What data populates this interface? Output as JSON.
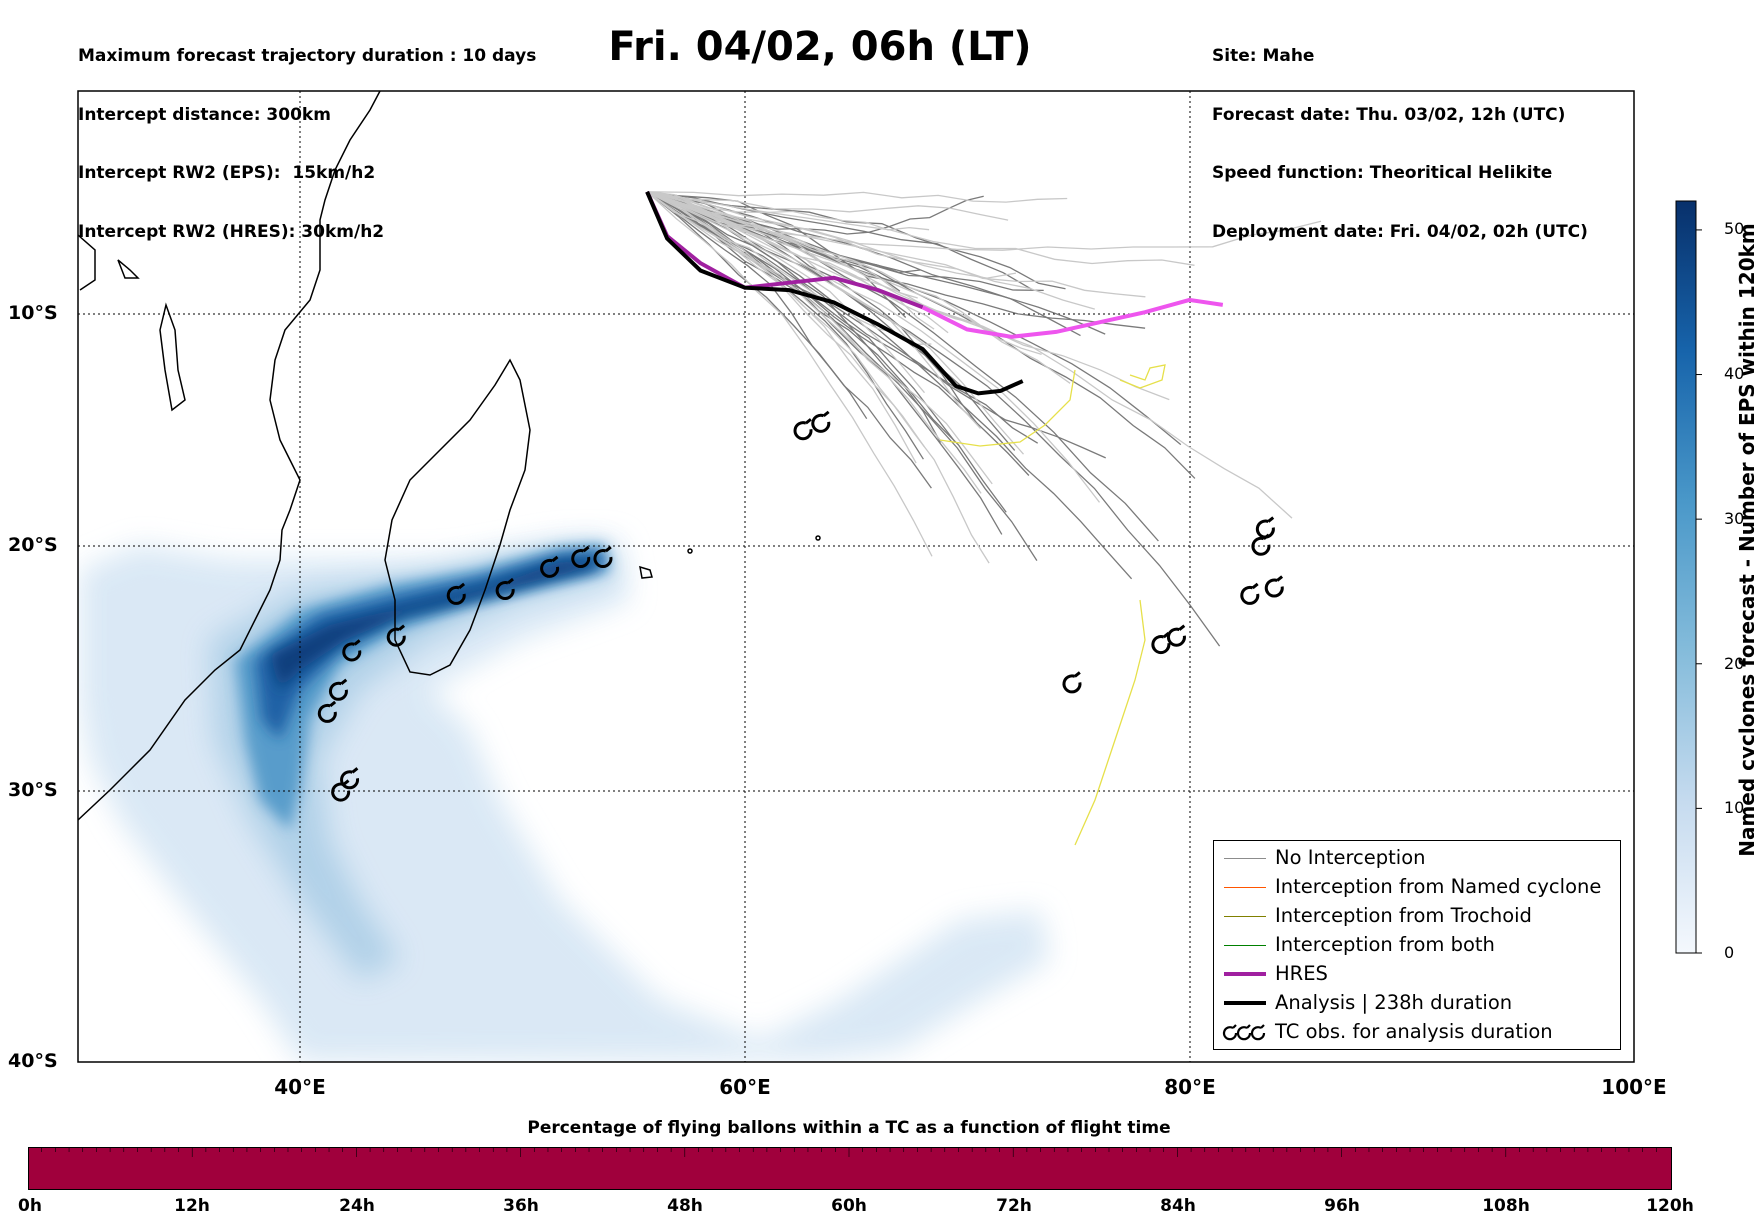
{
  "header": {
    "left_lines": [
      "Maximum forecast trajectory duration : 10 days",
      "Intercept distance: 300km",
      "Intercept RW2 (EPS):  15km/h2",
      "Intercept RW2 (HRES): 30km/h2"
    ],
    "title": "Fri. 04/02, 06h (LT)",
    "right_lines": [
      "Site: Mahe",
      "Forecast date: Thu. 03/02, 12h (UTC)",
      "Speed function: Theoritical Helikite",
      "Deployment date: Fri. 04/02, 02h (UTC)"
    ]
  },
  "map": {
    "lon_labels": [
      "40°E",
      "60°E",
      "80°E",
      "100°E"
    ],
    "lat_labels": [
      "10°S",
      "20°S",
      "30°S",
      "40°S"
    ],
    "extent": {
      "lon": [
        30,
        100
      ],
      "lat": [
        -40,
        -0.5
      ]
    },
    "grid": "dotted",
    "colors": {
      "no_interception": "#8c8c8c",
      "hres": "#a020a0",
      "hres_tail": "#ee55ee",
      "analysis": "#000000",
      "yellow_track": "#e6e04a"
    },
    "analysis_track": [
      [
        55.6,
        -4.6
      ],
      [
        56.5,
        -6.5
      ],
      [
        58,
        -7.8
      ],
      [
        60,
        -8.5
      ],
      [
        62,
        -8.6
      ],
      [
        64,
        -9.1
      ],
      [
        66,
        -10
      ],
      [
        68,
        -11
      ],
      [
        69.5,
        -12.5
      ],
      [
        70.5,
        -12.8
      ],
      [
        71.5,
        -12.7
      ],
      [
        72.5,
        -12.3
      ]
    ],
    "hres_track": [
      [
        55.6,
        -4.6
      ],
      [
        56.5,
        -6.4
      ],
      [
        58,
        -7.5
      ],
      [
        60,
        -8.5
      ],
      [
        62,
        -8.3
      ],
      [
        64,
        -8.1
      ],
      [
        66,
        -8.6
      ],
      [
        68,
        -9.3
      ],
      [
        70,
        -10.2
      ],
      [
        72,
        -10.5
      ],
      [
        74,
        -10.3
      ],
      [
        76,
        -9.9
      ],
      [
        78,
        -9.5
      ],
      [
        80,
        -9.0
      ],
      [
        81.5,
        -9.2
      ]
    ],
    "tc_obs": [
      [
        62.7,
        -14.3
      ],
      [
        63.5,
        -14.0
      ],
      [
        47.1,
        -21.0
      ],
      [
        49.3,
        -20.8
      ],
      [
        51.3,
        -19.9
      ],
      [
        52.7,
        -19.5
      ],
      [
        53.7,
        -19.5
      ],
      [
        44.4,
        -22.7
      ],
      [
        42.4,
        -23.3
      ],
      [
        41.8,
        -24.9
      ],
      [
        41.3,
        -25.8
      ],
      [
        42.3,
        -28.5
      ],
      [
        41.9,
        -29.0
      ],
      [
        74.8,
        -24.6
      ],
      [
        78.8,
        -23.0
      ],
      [
        79.5,
        -22.7
      ],
      [
        83.5,
        -18.3
      ],
      [
        83.3,
        -19.0
      ],
      [
        82.8,
        -21.0
      ],
      [
        83.9,
        -20.7
      ]
    ]
  },
  "colorbar": {
    "ticks": [
      0,
      10,
      20,
      30,
      40,
      50
    ],
    "max": 52,
    "title": "Named cyclones forecast - Number of EPS within 120km",
    "colors": [
      "#eef4fb",
      "#c6dbef",
      "#85bcdb",
      "#4a98c9",
      "#1764ab",
      "#08306b"
    ]
  },
  "legend": {
    "items": [
      {
        "label": "No Interception",
        "color": "#8c8c8c",
        "width": 1
      },
      {
        "label": "Interception from Named cyclone",
        "color": "#ff5500",
        "width": 1
      },
      {
        "label": "Interception from Trochoid",
        "color": "#808000",
        "width": 1
      },
      {
        "label": "Interception from both",
        "color": "#008000",
        "width": 1
      },
      {
        "label": "HRES",
        "color": "#a020a0",
        "width": 4
      },
      {
        "label": "Analysis | 238h duration",
        "color": "#000000",
        "width": 4
      },
      {
        "label": "TC obs. for analysis duration",
        "color": "#000000",
        "width": 0,
        "icon": "cyclone-symbol"
      }
    ]
  },
  "flight_bar": {
    "title": "Percentage of flying ballons within a TC as a function of flight time",
    "ticks": [
      "0h",
      "12h",
      "24h",
      "36h",
      "48h",
      "60h",
      "72h",
      "84h",
      "96h",
      "108h",
      "120h"
    ],
    "color": "#a0003c"
  }
}
